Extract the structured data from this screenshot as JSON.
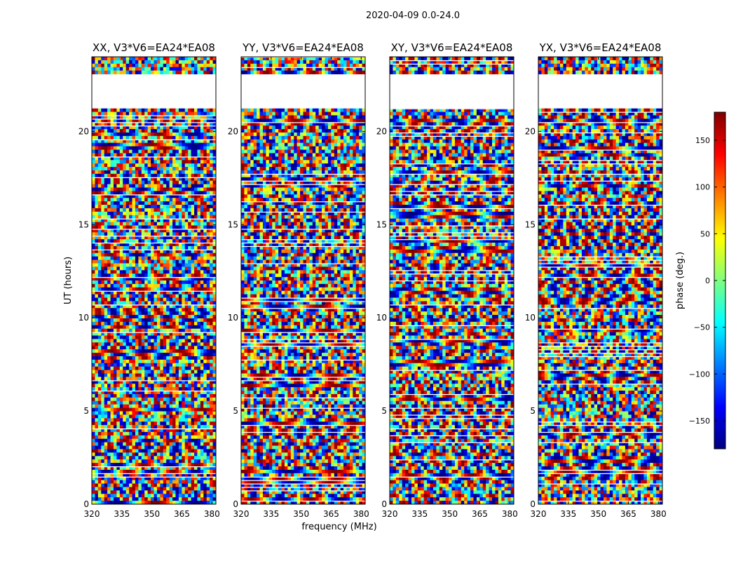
{
  "figure": {
    "suptitle": "2020-04-09 0.0-24.0"
  },
  "chart_data": {
    "type": "heatmap",
    "xlabel": "frequency (MHz)",
    "ylabel": "UT (hours)",
    "xlim": [
      320,
      382
    ],
    "ylim": [
      0,
      24
    ],
    "xticks": [
      "320",
      "335",
      "350",
      "365",
      "380"
    ],
    "xtick_values": [
      320,
      335,
      350,
      365,
      380
    ],
    "yticks": [
      "0",
      "5",
      "10",
      "15",
      "20"
    ],
    "ytick_values": [
      0,
      5,
      10,
      15,
      20
    ],
    "colormap": "jet",
    "colorbar": {
      "label": "phase (deg.)",
      "range": [
        -180,
        180
      ],
      "ticks": [
        "150",
        "100",
        "50",
        "0",
        "−50",
        "−100",
        "−150"
      ],
      "tick_values": [
        150,
        100,
        50,
        0,
        -50,
        -100,
        -150
      ]
    },
    "panels": [
      {
        "title": "XX, V3*V6=EA24*EA08"
      },
      {
        "title": "YY, V3*V6=EA24*EA08"
      },
      {
        "title": "XY, V3*V6=EA24*EA08"
      },
      {
        "title": "YX, V3*V6=EA24*EA08"
      }
    ],
    "data_gaps_hours": [
      [
        21.3,
        23.0
      ]
    ],
    "colors": {
      "jet": [
        "#00007f",
        "#0000ff",
        "#007fff",
        "#00ffff",
        "#7fff7f",
        "#ffff00",
        "#ff7f00",
        "#ff0000",
        "#7f0000"
      ]
    }
  }
}
